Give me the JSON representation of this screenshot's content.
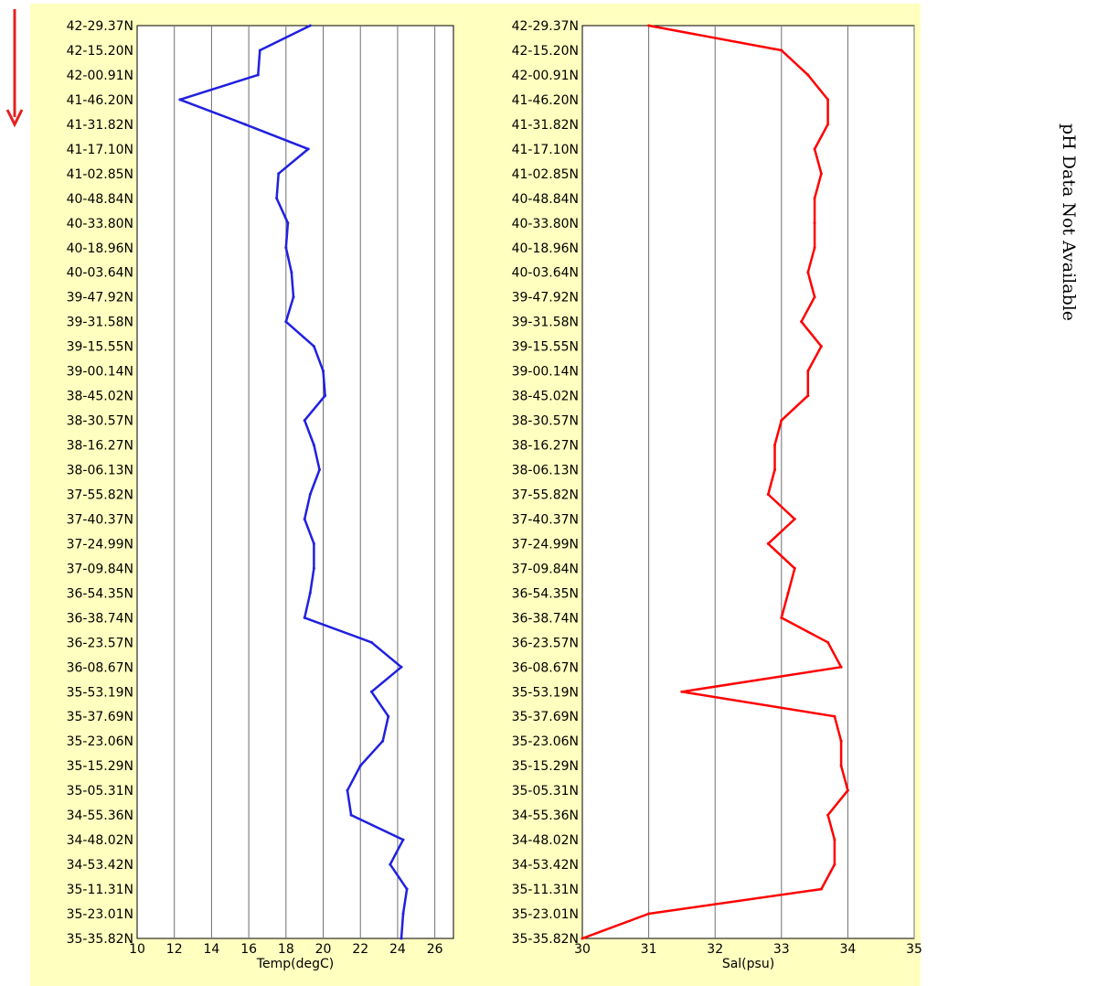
{
  "side_note": "pH Data Not Available",
  "colors": {
    "panel_bg": "#ffffc0",
    "temp_line": "#2020e0",
    "sal_line": "#ff0000",
    "arrow": "#e62020",
    "grid": "#707070"
  },
  "icons": {
    "direction": "down-arrow-icon"
  },
  "chart_data": [
    {
      "type": "line",
      "title": "",
      "xlabel": "Temp(degC)",
      "ylabel": "",
      "xlim": [
        10,
        27
      ],
      "xticks": [
        10,
        12,
        14,
        16,
        18,
        20,
        22,
        24,
        26
      ],
      "grid": true,
      "y_categories": [
        "42-29.37N",
        "42-15.20N",
        "42-00.91N",
        "41-46.20N",
        "41-31.82N",
        "41-17.10N",
        "41-02.85N",
        "40-48.84N",
        "40-33.80N",
        "40-18.96N",
        "40-03.64N",
        "39-47.92N",
        "39-31.58N",
        "39-15.55N",
        "39-00.14N",
        "38-45.02N",
        "38-30.57N",
        "38-16.27N",
        "38-06.13N",
        "37-55.82N",
        "37-40.37N",
        "37-24.99N",
        "37-09.84N",
        "36-54.35N",
        "36-38.74N",
        "36-23.57N",
        "36-08.67N",
        "35-53.19N",
        "35-37.69N",
        "35-23.06N",
        "35-15.29N",
        "35-05.31N",
        "34-55.36N",
        "34-48.02N",
        "34-53.42N",
        "35-11.31N",
        "35-23.01N",
        "35-35.82N"
      ],
      "series": [
        {
          "values": [
            19.3,
            16.6,
            16.5,
            12.3,
            15.8,
            19.2,
            17.6,
            17.5,
            18.1,
            18.0,
            18.3,
            18.4,
            18.0,
            19.5,
            20.0,
            20.1,
            19.0,
            19.5,
            19.8,
            19.3,
            19.0,
            19.5,
            19.5,
            19.3,
            19.0,
            22.6,
            24.2,
            22.6,
            23.5,
            23.2,
            22.0,
            21.3,
            21.5,
            24.3,
            23.6,
            24.5,
            24.3,
            24.2
          ]
        }
      ]
    },
    {
      "type": "line",
      "title": "",
      "xlabel": "Sal(psu)",
      "ylabel": "",
      "xlim": [
        30,
        35
      ],
      "xticks": [
        30,
        31,
        32,
        33,
        34,
        35
      ],
      "grid": true,
      "y_categories": [
        "42-29.37N",
        "42-15.20N",
        "42-00.91N",
        "41-46.20N",
        "41-31.82N",
        "41-17.10N",
        "41-02.85N",
        "40-48.84N",
        "40-33.80N",
        "40-18.96N",
        "40-03.64N",
        "39-47.92N",
        "39-31.58N",
        "39-15.55N",
        "39-00.14N",
        "38-45.02N",
        "38-30.57N",
        "38-16.27N",
        "38-06.13N",
        "37-55.82N",
        "37-40.37N",
        "37-24.99N",
        "37-09.84N",
        "36-54.35N",
        "36-38.74N",
        "36-23.57N",
        "36-08.67N",
        "35-53.19N",
        "35-37.69N",
        "35-23.06N",
        "35-15.29N",
        "35-05.31N",
        "34-55.36N",
        "34-48.02N",
        "34-53.42N",
        "35-11.31N",
        "35-23.01N",
        "35-35.82N"
      ],
      "series": [
        {
          "values": [
            31.0,
            33.0,
            33.4,
            33.7,
            33.7,
            33.5,
            33.6,
            33.5,
            33.5,
            33.5,
            33.4,
            33.5,
            33.3,
            33.6,
            33.4,
            33.4,
            33.0,
            32.9,
            32.9,
            32.8,
            33.2,
            32.8,
            33.2,
            33.1,
            33.0,
            33.7,
            33.9,
            31.5,
            33.8,
            33.9,
            33.9,
            34.0,
            33.7,
            33.8,
            33.8,
            33.6,
            31.0,
            30.0
          ]
        }
      ]
    }
  ]
}
